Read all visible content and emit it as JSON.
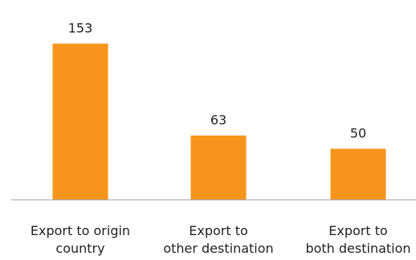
{
  "chart_data": {
    "type": "bar",
    "categories": [
      [
        "Export to origin",
        "country"
      ],
      [
        "Export to",
        "other destination"
      ],
      [
        "Export to",
        "both destination"
      ]
    ],
    "values": [
      153,
      63,
      50
    ],
    "data_labels": [
      "153",
      "63",
      "50"
    ],
    "title": "",
    "xlabel": "",
    "ylabel": "",
    "ylim": [
      0,
      180
    ],
    "grid": false,
    "legend": "none",
    "bar_color": "#F7941D",
    "axis_color": "#9E9E9E",
    "text_color": "#222222"
  }
}
